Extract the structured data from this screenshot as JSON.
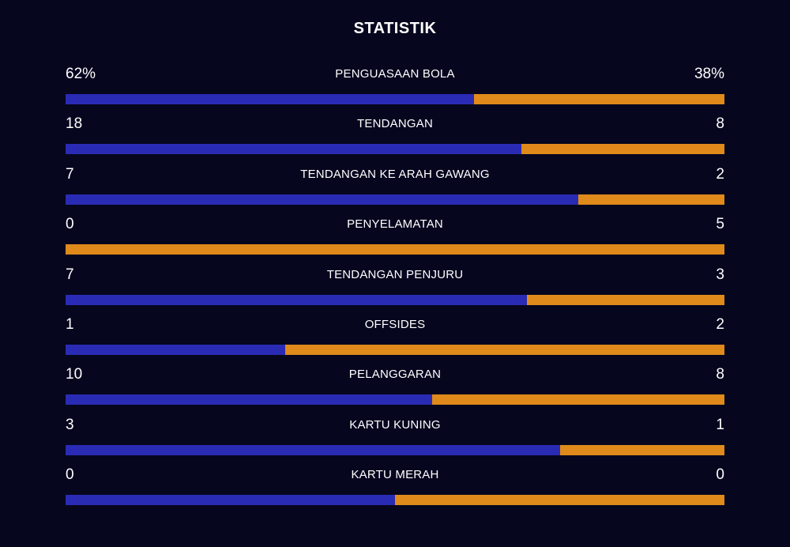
{
  "title": "STATISTIK",
  "colors": {
    "background": "#06061f",
    "home": "#2a2bb4",
    "away": "#df8a1a"
  },
  "stats": [
    {
      "label": "PENGUASAAN BOLA",
      "home": "62%",
      "away": "38%",
      "home_share": 0.62
    },
    {
      "label": "TENDANGAN",
      "home": "18",
      "away": "8",
      "home_share": 0.692
    },
    {
      "label": "TENDANGAN KE ARAH GAWANG",
      "home": "7",
      "away": "2",
      "home_share": 0.778
    },
    {
      "label": "PENYELAMATAN",
      "home": "0",
      "away": "5",
      "home_share": 0.0
    },
    {
      "label": "TENDANGAN PENJURU",
      "home": "7",
      "away": "3",
      "home_share": 0.7
    },
    {
      "label": "OFFSIDES",
      "home": "1",
      "away": "2",
      "home_share": 0.333
    },
    {
      "label": "PELANGGARAN",
      "home": "10",
      "away": "8",
      "home_share": 0.556
    },
    {
      "label": "KARTU KUNING",
      "home": "3",
      "away": "1",
      "home_share": 0.75
    },
    {
      "label": "KARTU MERAH",
      "home": "0",
      "away": "0",
      "home_share": 0.5
    }
  ]
}
